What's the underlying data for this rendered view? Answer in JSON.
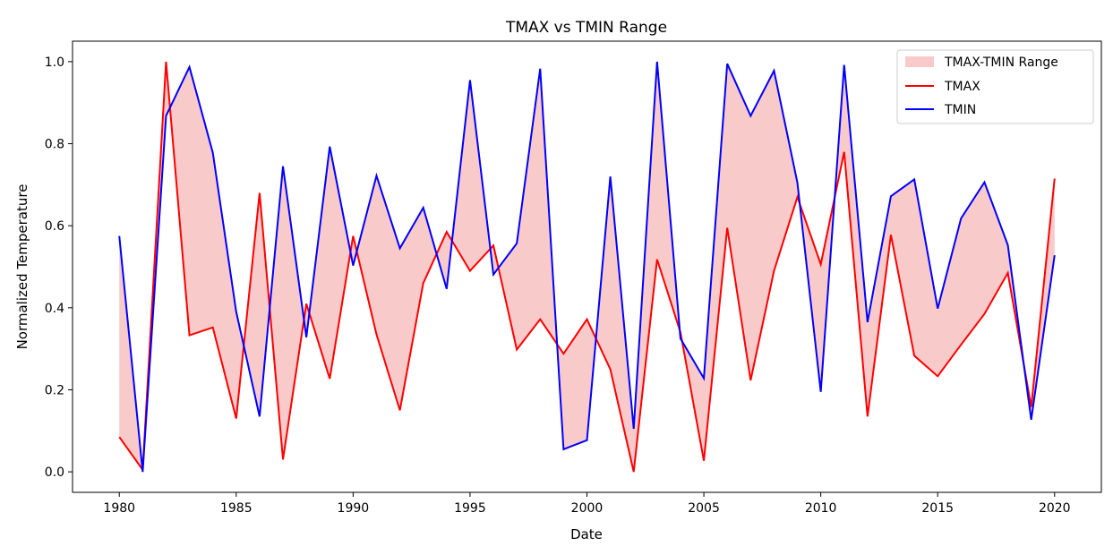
{
  "chart_data": {
    "type": "line",
    "title": "TMAX vs TMIN Range",
    "xlabel": "Date",
    "ylabel": "Normalized Temperature",
    "xlim": [
      1978,
      2022
    ],
    "ylim": [
      -0.05,
      1.05
    ],
    "x_ticks": [
      1980,
      1985,
      1990,
      1995,
      2000,
      2005,
      2010,
      2015,
      2020
    ],
    "y_ticks": [
      0.0,
      0.2,
      0.4,
      0.6,
      0.8,
      1.0
    ],
    "y_tick_labels": [
      "0.0",
      "0.2",
      "0.4",
      "0.6",
      "0.8",
      "1.0"
    ],
    "grid": false,
    "legend_position": "top-right",
    "x": [
      1980,
      1981,
      1982,
      1983,
      1984,
      1985,
      1986,
      1987,
      1988,
      1989,
      1990,
      1991,
      1992,
      1993,
      1994,
      1995,
      1996,
      1997,
      1998,
      1999,
      2000,
      2001,
      2002,
      2003,
      2004,
      2005,
      2006,
      2007,
      2008,
      2009,
      2010,
      2011,
      2012,
      2013,
      2014,
      2015,
      2016,
      2017,
      2018,
      2019,
      2020
    ],
    "fill": {
      "name": "TMAX-TMIN Range",
      "color": "#f4a6a6",
      "between": [
        "TMAX",
        "TMIN"
      ]
    },
    "series": [
      {
        "name": "TMAX",
        "color": "#ff0000",
        "values": [
          0.085,
          0.005,
          1.0,
          0.333,
          0.352,
          0.13,
          0.68,
          0.03,
          0.41,
          0.227,
          0.575,
          0.335,
          0.15,
          0.46,
          0.585,
          0.49,
          0.552,
          0.298,
          0.372,
          0.288,
          0.372,
          0.25,
          0.0,
          0.518,
          0.34,
          0.027,
          0.595,
          0.223,
          0.49,
          0.67,
          0.506,
          0.78,
          0.135,
          0.578,
          0.283,
          0.233,
          0.31,
          0.385,
          0.485,
          0.158,
          0.715
        ]
      },
      {
        "name": "TMIN",
        "color": "#0000ff",
        "values": [
          0.575,
          0.0,
          0.868,
          0.987,
          0.778,
          0.39,
          0.135,
          0.745,
          0.328,
          0.793,
          0.503,
          0.722,
          0.545,
          0.644,
          0.446,
          0.955,
          0.481,
          0.557,
          0.983,
          0.055,
          0.077,
          0.72,
          0.105,
          1.0,
          0.325,
          0.228,
          0.995,
          0.868,
          0.978,
          0.705,
          0.195,
          0.992,
          0.365,
          0.672,
          0.713,
          0.398,
          0.618,
          0.706,
          0.553,
          0.127,
          0.528
        ]
      }
    ]
  }
}
